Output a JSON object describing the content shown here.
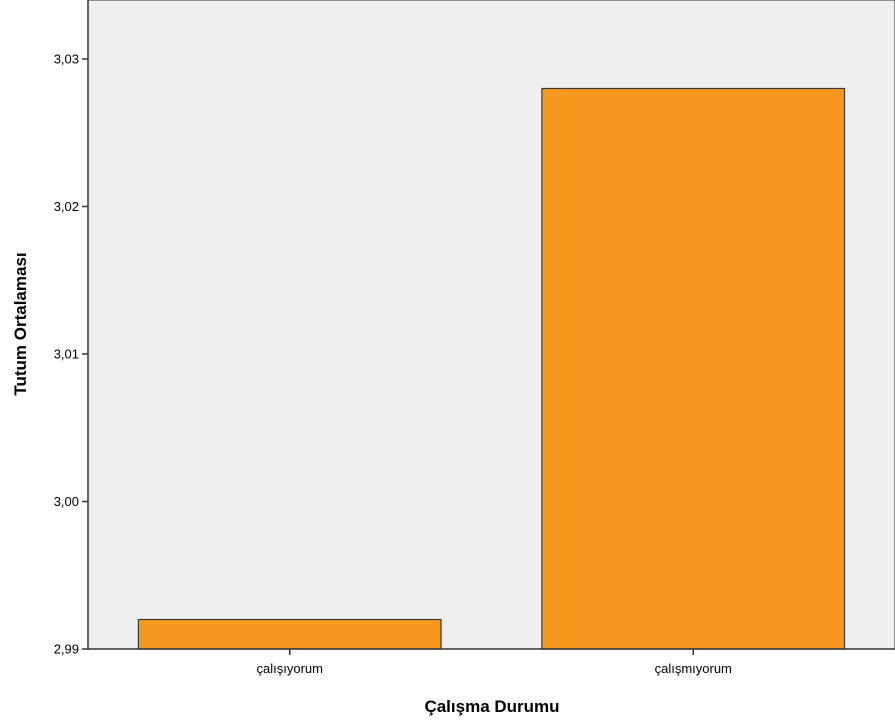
{
  "chart_data": {
    "type": "bar",
    "title": "",
    "xlabel": "Çalışma Durumu",
    "ylabel": "Tutum Ortalaması",
    "categories": [
      "çalışıyorum",
      "çalışmıyorum"
    ],
    "values": [
      2.992,
      3.028
    ],
    "ylim": [
      2.99,
      3.034
    ],
    "yticks": [
      2.99,
      3.0,
      3.01,
      3.02,
      3.03
    ],
    "ytick_labels": [
      "2,99",
      "3,00",
      "3,01",
      "3,02",
      "3,03"
    ],
    "grid": false,
    "legend": "none",
    "colors": {
      "bar_fill": "#f7991f",
      "bar_stroke": "#3a3a3a",
      "plot_background": "#efefef",
      "axis": "#333333"
    }
  }
}
